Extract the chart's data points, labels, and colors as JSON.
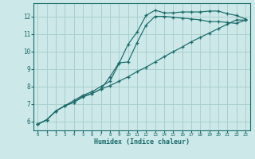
{
  "bg_color": "#cce8e8",
  "grid_color": "#aacfcf",
  "line_color": "#1a6b6b",
  "xlabel": "Humidex (Indice chaleur)",
  "xlim": [
    -0.5,
    23.5
  ],
  "ylim": [
    5.5,
    12.75
  ],
  "xticks": [
    0,
    1,
    2,
    3,
    4,
    5,
    6,
    7,
    8,
    9,
    10,
    11,
    12,
    13,
    14,
    15,
    16,
    17,
    18,
    19,
    20,
    21,
    22,
    23
  ],
  "yticks": [
    6,
    7,
    8,
    9,
    10,
    11,
    12
  ],
  "line1_x": [
    0,
    1,
    2,
    3,
    4,
    5,
    6,
    7,
    8,
    9,
    10,
    11,
    12,
    13,
    14,
    15,
    16,
    17,
    18,
    19,
    20,
    21,
    22,
    23
  ],
  "line1_y": [
    5.85,
    6.1,
    6.6,
    6.9,
    7.2,
    7.5,
    7.7,
    8.0,
    8.3,
    9.3,
    10.4,
    11.1,
    12.05,
    12.35,
    12.2,
    12.2,
    12.25,
    12.25,
    12.25,
    12.3,
    12.3,
    12.15,
    12.05,
    11.85
  ],
  "line2_x": [
    0,
    1,
    2,
    3,
    4,
    5,
    6,
    7,
    8,
    9,
    10,
    11,
    12,
    13,
    14,
    15,
    16,
    17,
    18,
    19,
    20,
    21,
    22,
    23
  ],
  "line2_y": [
    5.85,
    6.1,
    6.6,
    6.9,
    7.1,
    7.45,
    7.6,
    7.85,
    8.55,
    9.35,
    9.4,
    10.5,
    11.5,
    12.0,
    12.0,
    11.95,
    11.9,
    11.85,
    11.8,
    11.7,
    11.7,
    11.65,
    11.6,
    11.78
  ],
  "line3_x": [
    0,
    1,
    2,
    3,
    4,
    5,
    6,
    7,
    8,
    9,
    10,
    11,
    12,
    13,
    14,
    15,
    16,
    17,
    18,
    19,
    20,
    21,
    22,
    23
  ],
  "line3_y": [
    5.85,
    6.1,
    6.6,
    6.9,
    7.1,
    7.4,
    7.6,
    7.85,
    8.05,
    8.3,
    8.55,
    8.85,
    9.1,
    9.4,
    9.7,
    9.98,
    10.25,
    10.55,
    10.8,
    11.05,
    11.3,
    11.55,
    11.8,
    11.78
  ]
}
